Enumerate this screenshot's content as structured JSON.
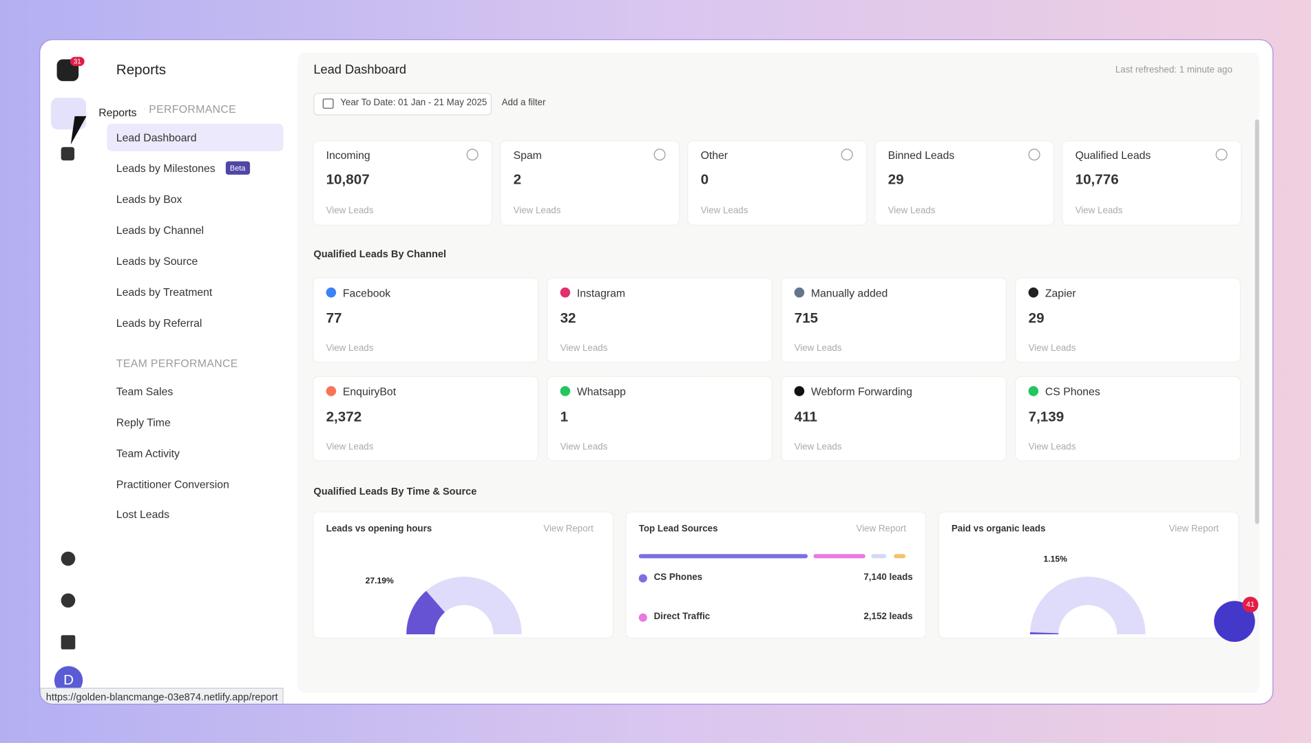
{
  "status_url": "https://golden-blancmange-03e874.netlify.app/report",
  "rail": {
    "badge": "31",
    "tooltip": "Reports",
    "avatar": "D"
  },
  "sidebar": {
    "title": "Reports",
    "sections": [
      {
        "heading": "LEAD PERFORMANCE",
        "items": [
          {
            "label": "Lead Dashboard"
          },
          {
            "label": "Leads by Milestones",
            "badge": "Beta"
          },
          {
            "label": "Leads by Box"
          },
          {
            "label": "Leads by Channel"
          },
          {
            "label": "Leads by Source"
          },
          {
            "label": "Leads by Treatment"
          },
          {
            "label": "Leads by Referral"
          }
        ]
      },
      {
        "heading": "TEAM PERFORMANCE",
        "items": [
          {
            "label": "Team Sales"
          },
          {
            "label": "Reply Time"
          },
          {
            "label": "Team Activity"
          },
          {
            "label": "Practitioner Conversion"
          },
          {
            "label": "Lost Leads"
          }
        ]
      }
    ]
  },
  "main": {
    "title": "Lead Dashboard",
    "refreshed": "Last refreshed: 1 minute ago",
    "filter": "Year To Date: 01 Jan - 21 May 2025",
    "add_filter": "Add a filter",
    "stats": [
      {
        "label": "Incoming",
        "value": "10,807",
        "link": "View Leads"
      },
      {
        "label": "Spam",
        "value": "2",
        "link": "View Leads"
      },
      {
        "label": "Other",
        "value": "0",
        "link": "View Leads"
      },
      {
        "label": "Binned Leads",
        "value": "29",
        "link": "View Leads"
      },
      {
        "label": "Qualified Leads",
        "value": "10,776",
        "link": "View Leads"
      }
    ],
    "channel_title": "Qualified Leads By Channel",
    "channels": [
      {
        "name": "Facebook",
        "value": "77",
        "link": "View Leads",
        "color": "#3b82f6"
      },
      {
        "name": "Instagram",
        "value": "32",
        "link": "View Leads",
        "color": "#e1306c"
      },
      {
        "name": "Manually added",
        "value": "715",
        "link": "View Leads",
        "color": "#64748b"
      },
      {
        "name": "Zapier",
        "value": "29",
        "link": "View Leads",
        "color": "#222222"
      },
      {
        "name": "EnquiryBot",
        "value": "2,372",
        "link": "View Leads",
        "color": "#f97356"
      },
      {
        "name": "Whatsapp",
        "value": "1",
        "link": "View Leads",
        "color": "#22c55e"
      },
      {
        "name": "Webform Forwarding",
        "value": "411",
        "link": "View Leads",
        "color": "#111111"
      },
      {
        "name": "CS Phones",
        "value": "7,139",
        "link": "View Leads",
        "color": "#22c55e"
      }
    ],
    "time_title": "Qualified Leads By Time & Source",
    "panels": [
      {
        "title": "Leads vs opening hours",
        "link": "View Report",
        "gauge": {
          "value": 27.19,
          "value_label": "27.19%"
        }
      },
      {
        "title": "Top Lead Sources",
        "link": "View Report",
        "sources": [
          {
            "name": "CS Phones",
            "count": "7,140 leads",
            "color": "#7c6fe0"
          },
          {
            "name": "Direct Traffic",
            "count": "2,152 leads",
            "color": "#e879e0"
          }
        ]
      },
      {
        "title": "Paid vs organic leads",
        "link": "View Report",
        "gauge": {
          "value": 1.15,
          "value_label": "1.15%"
        }
      }
    ]
  },
  "chat_badge": "41"
}
